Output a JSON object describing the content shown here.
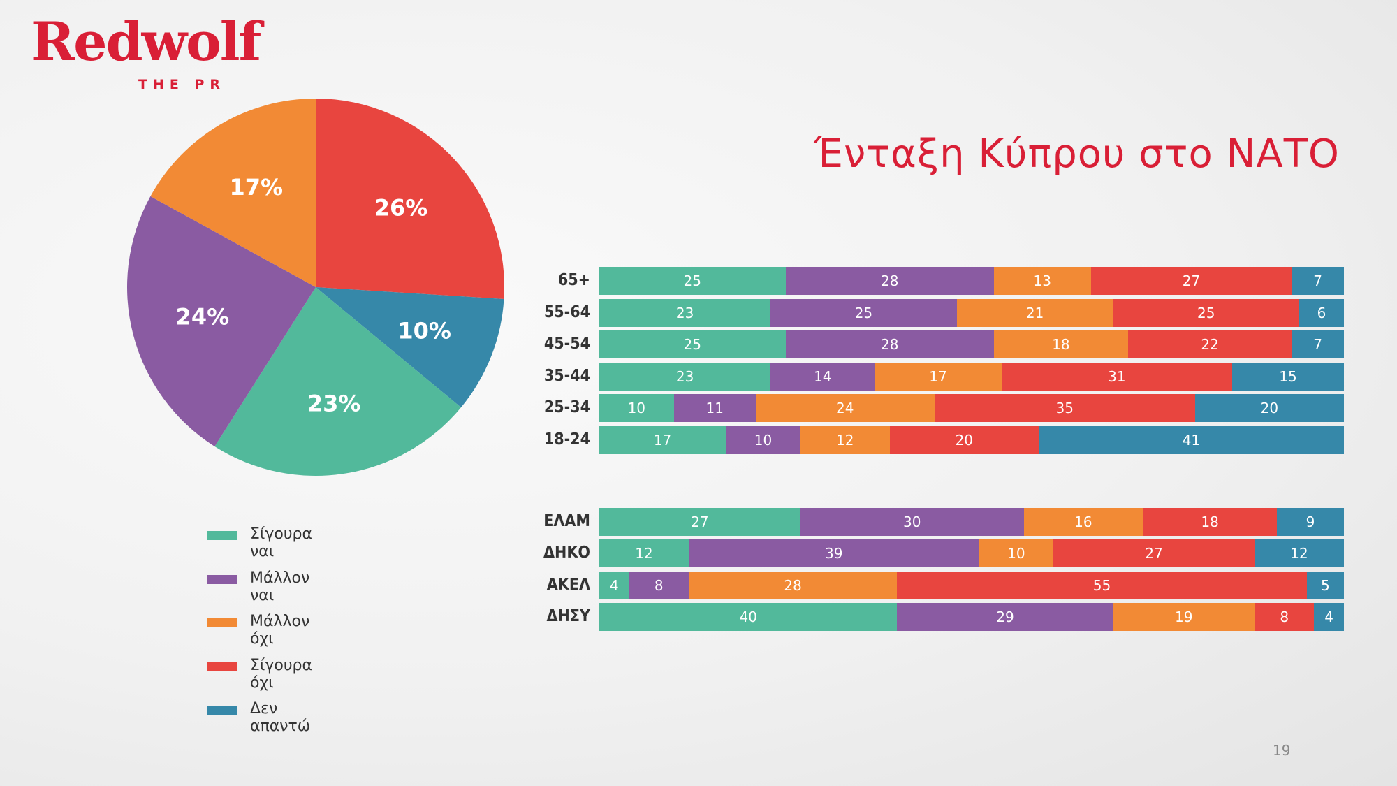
{
  "logo": {
    "main": "Redwolf",
    "sub": "THE PR"
  },
  "page_number": "19",
  "colors": {
    "Σίγουρα ναι": "#52b99b",
    "Μάλλον ναι": "#8a5ba2",
    "Μάλλον όχι": "#f28a35",
    "Σίγουρα όχι": "#e8453f",
    "Δεν απαντώ": "#3688a9"
  },
  "chart_data": [
    {
      "type": "pie",
      "title": "",
      "categories": [
        "Σίγουρα όχι",
        "Δεν απαντώ",
        "Σίγουρα ναι",
        "Μάλλον ναι",
        "Μάλλον όχι"
      ],
      "values": [
        26,
        10,
        23,
        24,
        17
      ],
      "labels": [
        "26%",
        "10%",
        "23%",
        "24%",
        "17%"
      ],
      "legend": [
        "Σίγουρα ναι",
        "Μάλλον ναι",
        "Μάλλον όχι",
        "Σίγουρα όχι",
        "Δεν απαντώ"
      ],
      "legend_position": "bottom"
    },
    {
      "type": "bar",
      "orientation": "horizontal",
      "stacked": true,
      "title": "Ένταξη Κύπρου στο ΝΑΤΟ",
      "categories": [
        "65+",
        "55-64",
        "45-54",
        "35-44",
        "25-34",
        "18-24"
      ],
      "series": [
        {
          "name": "Σίγουρα ναι",
          "values": [
            25,
            23,
            25,
            23,
            10,
            17
          ]
        },
        {
          "name": "Μάλλον ναι",
          "values": [
            28,
            25,
            28,
            14,
            11,
            10
          ]
        },
        {
          "name": "Μάλλον όχι",
          "values": [
            13,
            21,
            18,
            17,
            24,
            12
          ]
        },
        {
          "name": "Σίγουρα όχι",
          "values": [
            27,
            25,
            22,
            31,
            35,
            20
          ]
        },
        {
          "name": "Δεν απαντώ",
          "values": [
            7,
            6,
            7,
            15,
            20,
            41
          ]
        }
      ]
    },
    {
      "type": "bar",
      "orientation": "horizontal",
      "stacked": true,
      "categories": [
        "ΕΛΑΜ",
        "ΔΗΚΟ",
        "ΑΚΕΛ",
        "ΔΗΣΥ"
      ],
      "series": [
        {
          "name": "Σίγουρα ναι",
          "values": [
            27,
            12,
            4,
            40
          ]
        },
        {
          "name": "Μάλλον ναι",
          "values": [
            30,
            39,
            8,
            29
          ]
        },
        {
          "name": "Μάλλον όχι",
          "values": [
            16,
            10,
            28,
            19
          ]
        },
        {
          "name": "Σίγουρα όχι",
          "values": [
            18,
            27,
            55,
            8
          ]
        },
        {
          "name": "Δεν απαντώ",
          "values": [
            9,
            12,
            5,
            4
          ]
        }
      ]
    }
  ]
}
